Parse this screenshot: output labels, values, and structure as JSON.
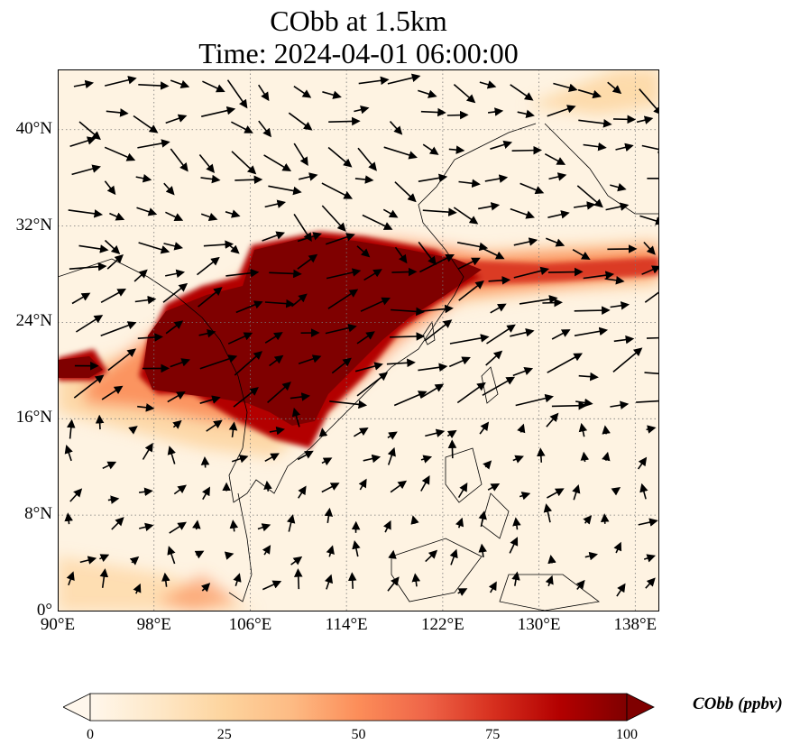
{
  "title": "CObb at 1.5km",
  "subtitle": "Time: 2024-04-01 06:00:00",
  "map": {
    "lon_range": [
      90,
      140
    ],
    "lat_range": [
      0,
      45
    ],
    "lon_ticks": [
      90,
      98,
      106,
      114,
      122,
      130,
      138
    ],
    "lat_ticks": [
      0,
      8,
      16,
      24,
      32,
      40
    ],
    "lon_tick_labels": [
      "90°E",
      "98°E",
      "106°E",
      "114°E",
      "122°E",
      "130°E",
      "138°E"
    ],
    "lat_tick_labels": [
      "0°",
      "8°N",
      "16°N",
      "24°N",
      "32°N",
      "40°N"
    ],
    "gridlines": true
  },
  "colorbar": {
    "label": "CObb (ppbv)",
    "ticks": [
      "0",
      "25",
      "50",
      "75",
      "100"
    ],
    "range": [
      0,
      100
    ],
    "extend": "both",
    "colormap": "OrRd",
    "colors": [
      "#fff7ec",
      "#fee8c8",
      "#fdd49e",
      "#fdbb84",
      "#fc8d59",
      "#ef6548",
      "#d7301f",
      "#b30000",
      "#7f0000"
    ]
  }
}
